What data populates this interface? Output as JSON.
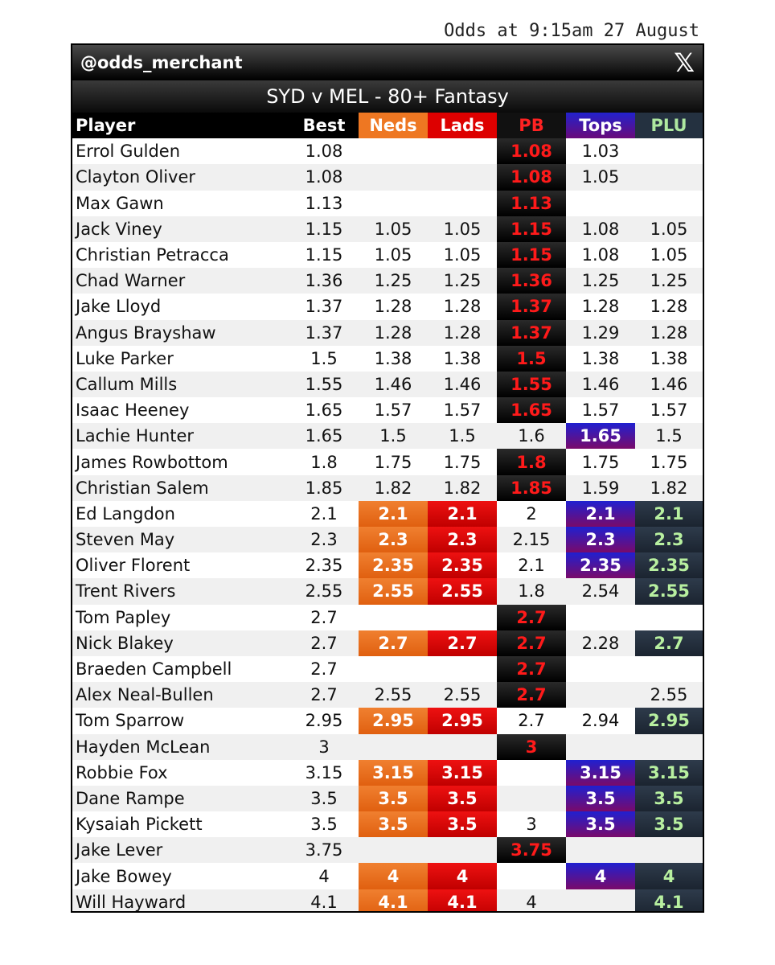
{
  "timestamp": "Odds at 9:15am 27 August",
  "brand": {
    "handle": "@odds_merchant",
    "icon": "x-logo-icon",
    "icon_glyph": "𝕏"
  },
  "title": "SYD v MEL - 80+ Fantasy",
  "colors": {
    "neds": "#ee7722",
    "lads": "#dd0000",
    "pb": "#ff2222",
    "tops": "#3a12b0",
    "plu": "#aee8a0"
  },
  "headers": {
    "player": "Player",
    "best": "Best",
    "neds": "Neds",
    "lads": "Lads",
    "pb": "PB",
    "tops": "Tops",
    "plu": "PLU"
  },
  "rows": [
    {
      "player": "Errol Gulden",
      "best": "1.08",
      "neds": "",
      "lads": "",
      "pb": "1.08",
      "tops": "1.03",
      "plu": "",
      "hl": [
        "pb"
      ]
    },
    {
      "player": "Clayton Oliver",
      "best": "1.08",
      "neds": "",
      "lads": "",
      "pb": "1.08",
      "tops": "1.05",
      "plu": "",
      "hl": [
        "pb"
      ]
    },
    {
      "player": "Max Gawn",
      "best": "1.13",
      "neds": "",
      "lads": "",
      "pb": "1.13",
      "tops": "",
      "plu": "",
      "hl": [
        "pb"
      ]
    },
    {
      "player": "Jack Viney",
      "best": "1.15",
      "neds": "1.05",
      "lads": "1.05",
      "pb": "1.15",
      "tops": "1.08",
      "plu": "1.05",
      "hl": [
        "pb"
      ]
    },
    {
      "player": "Christian Petracca",
      "best": "1.15",
      "neds": "1.05",
      "lads": "1.05",
      "pb": "1.15",
      "tops": "1.08",
      "plu": "1.05",
      "hl": [
        "pb"
      ]
    },
    {
      "player": "Chad Warner",
      "best": "1.36",
      "neds": "1.25",
      "lads": "1.25",
      "pb": "1.36",
      "tops": "1.25",
      "plu": "1.25",
      "hl": [
        "pb"
      ]
    },
    {
      "player": "Jake Lloyd",
      "best": "1.37",
      "neds": "1.28",
      "lads": "1.28",
      "pb": "1.37",
      "tops": "1.28",
      "plu": "1.28",
      "hl": [
        "pb"
      ]
    },
    {
      "player": "Angus Brayshaw",
      "best": "1.37",
      "neds": "1.28",
      "lads": "1.28",
      "pb": "1.37",
      "tops": "1.29",
      "plu": "1.28",
      "hl": [
        "pb"
      ]
    },
    {
      "player": "Luke Parker",
      "best": "1.5",
      "neds": "1.38",
      "lads": "1.38",
      "pb": "1.5",
      "tops": "1.38",
      "plu": "1.38",
      "hl": [
        "pb"
      ]
    },
    {
      "player": "Callum Mills",
      "best": "1.55",
      "neds": "1.46",
      "lads": "1.46",
      "pb": "1.55",
      "tops": "1.46",
      "plu": "1.46",
      "hl": [
        "pb"
      ]
    },
    {
      "player": "Isaac Heeney",
      "best": "1.65",
      "neds": "1.57",
      "lads": "1.57",
      "pb": "1.65",
      "tops": "1.57",
      "plu": "1.57",
      "hl": [
        "pb"
      ]
    },
    {
      "player": "Lachie Hunter",
      "best": "1.65",
      "neds": "1.5",
      "lads": "1.5",
      "pb": "1.6",
      "tops": "1.65",
      "plu": "1.5",
      "hl": [
        "tops"
      ]
    },
    {
      "player": "James Rowbottom",
      "best": "1.8",
      "neds": "1.75",
      "lads": "1.75",
      "pb": "1.8",
      "tops": "1.75",
      "plu": "1.75",
      "hl": [
        "pb"
      ]
    },
    {
      "player": "Christian Salem",
      "best": "1.85",
      "neds": "1.82",
      "lads": "1.82",
      "pb": "1.85",
      "tops": "1.59",
      "plu": "1.82",
      "hl": [
        "pb"
      ]
    },
    {
      "player": "Ed Langdon",
      "best": "2.1",
      "neds": "2.1",
      "lads": "2.1",
      "pb": "2",
      "tops": "2.1",
      "plu": "2.1",
      "hl": [
        "neds",
        "lads",
        "tops",
        "plu"
      ]
    },
    {
      "player": "Steven May",
      "best": "2.3",
      "neds": "2.3",
      "lads": "2.3",
      "pb": "2.15",
      "tops": "2.3",
      "plu": "2.3",
      "hl": [
        "neds",
        "lads",
        "tops",
        "plu"
      ]
    },
    {
      "player": "Oliver Florent",
      "best": "2.35",
      "neds": "2.35",
      "lads": "2.35",
      "pb": "2.1",
      "tops": "2.35",
      "plu": "2.35",
      "hl": [
        "neds",
        "lads",
        "tops",
        "plu"
      ]
    },
    {
      "player": "Trent Rivers",
      "best": "2.55",
      "neds": "2.55",
      "lads": "2.55",
      "pb": "1.8",
      "tops": "2.54",
      "plu": "2.55",
      "hl": [
        "neds",
        "lads",
        "plu"
      ]
    },
    {
      "player": "Tom Papley",
      "best": "2.7",
      "neds": "",
      "lads": "",
      "pb": "2.7",
      "tops": "",
      "plu": "",
      "hl": [
        "pb"
      ]
    },
    {
      "player": "Nick Blakey",
      "best": "2.7",
      "neds": "2.7",
      "lads": "2.7",
      "pb": "2.7",
      "tops": "2.28",
      "plu": "2.7",
      "hl": [
        "neds",
        "lads",
        "pb",
        "plu"
      ]
    },
    {
      "player": "Braeden Campbell",
      "best": "2.7",
      "neds": "",
      "lads": "",
      "pb": "2.7",
      "tops": "",
      "plu": "",
      "hl": [
        "pb"
      ]
    },
    {
      "player": "Alex Neal-Bullen",
      "best": "2.7",
      "neds": "2.55",
      "lads": "2.55",
      "pb": "2.7",
      "tops": "",
      "plu": "2.55",
      "hl": [
        "pb"
      ]
    },
    {
      "player": "Tom Sparrow",
      "best": "2.95",
      "neds": "2.95",
      "lads": "2.95",
      "pb": "2.7",
      "tops": "2.94",
      "plu": "2.95",
      "hl": [
        "neds",
        "lads",
        "plu"
      ]
    },
    {
      "player": "Hayden McLean",
      "best": "3",
      "neds": "",
      "lads": "",
      "pb": "3",
      "tops": "",
      "plu": "",
      "hl": [
        "pb"
      ]
    },
    {
      "player": "Robbie Fox",
      "best": "3.15",
      "neds": "3.15",
      "lads": "3.15",
      "pb": "",
      "tops": "3.15",
      "plu": "3.15",
      "hl": [
        "neds",
        "lads",
        "tops",
        "plu"
      ]
    },
    {
      "player": "Dane Rampe",
      "best": "3.5",
      "neds": "3.5",
      "lads": "3.5",
      "pb": "",
      "tops": "3.5",
      "plu": "3.5",
      "hl": [
        "neds",
        "lads",
        "tops",
        "plu"
      ]
    },
    {
      "player": "Kysaiah Pickett",
      "best": "3.5",
      "neds": "3.5",
      "lads": "3.5",
      "pb": "3",
      "tops": "3.5",
      "plu": "3.5",
      "hl": [
        "neds",
        "lads",
        "tops",
        "plu"
      ]
    },
    {
      "player": "Jake Lever",
      "best": "3.75",
      "neds": "",
      "lads": "",
      "pb": "3.75",
      "tops": "",
      "plu": "",
      "hl": [
        "pb"
      ]
    },
    {
      "player": "Jake Bowey",
      "best": "4",
      "neds": "4",
      "lads": "4",
      "pb": "",
      "tops": "4",
      "plu": "4",
      "hl": [
        "neds",
        "lads",
        "tops",
        "plu"
      ]
    },
    {
      "player": "Will Hayward",
      "best": "4.1",
      "neds": "4.1",
      "lads": "4.1",
      "pb": "4",
      "tops": "",
      "plu": "4.1",
      "hl": [
        "neds",
        "lads",
        "plu"
      ]
    }
  ]
}
